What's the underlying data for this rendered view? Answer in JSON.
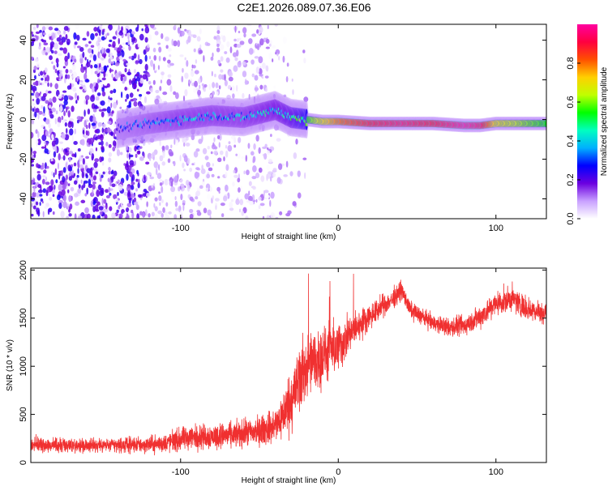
{
  "title": "C2E1.2026.089.07.36.E06",
  "chart_data": [
    {
      "type": "heatmap",
      "name": "spectrogram",
      "xlabel": "Height of straight line (km)",
      "ylabel": "Frequency (Hz)",
      "xlim": [
        -195,
        132
      ],
      "ylim": [
        -50,
        48
      ],
      "xticks": [
        -100,
        0,
        100
      ],
      "xtick_labels": [
        "-100",
        "0",
        "100"
      ],
      "yticks": [
        -40,
        -20,
        0,
        20,
        40
      ],
      "ytick_labels": [
        "-40",
        "-20",
        "0",
        "20",
        "40"
      ],
      "ridge": {
        "description_points_x": [
          -140,
          -120,
          -100,
          -80,
          -60,
          -40,
          -30,
          -20,
          -10,
          0,
          20,
          40,
          60,
          80,
          90,
          100,
          120,
          132
        ],
        "frequency_y": [
          -5,
          -2,
          0,
          2,
          1,
          5,
          1,
          0,
          -1,
          -1,
          -2,
          -2,
          -2,
          -3,
          -3,
          -2,
          -2,
          -2
        ],
        "normalized_amplitude": [
          0.25,
          0.3,
          0.35,
          0.35,
          0.35,
          0.4,
          0.45,
          0.55,
          0.7,
          0.8,
          0.9,
          0.95,
          0.9,
          1.0,
          0.95,
          0.7,
          0.6,
          0.55
        ]
      },
      "colorbar": {
        "label": "Normalized spectral amplitude",
        "range": [
          0.0,
          1.0
        ],
        "ticks": [
          0.0,
          0.2,
          0.4,
          0.6,
          0.8
        ],
        "tick_labels": [
          "0.0",
          "0.2",
          "0.4",
          "0.6",
          "0.8"
        ],
        "colors": [
          "#ffffff",
          "#c8a0ff",
          "#6b00e0",
          "#0000ff",
          "#00b0ff",
          "#00ffc0",
          "#00ff00",
          "#c0ff00",
          "#ffd000",
          "#ff5000",
          "#ff0040",
          "#ff00a0"
        ]
      }
    },
    {
      "type": "line",
      "name": "snr",
      "xlabel": "Height of straight line (km)",
      "ylabel": "SNR (10 * v/v)",
      "xlim": [
        -195,
        132
      ],
      "ylim": [
        0,
        2020
      ],
      "xticks": [
        -100,
        0,
        100
      ],
      "xtick_labels": [
        "-100",
        "0",
        "100"
      ],
      "yticks": [
        0,
        500,
        1000,
        1500,
        2000
      ],
      "ytick_labels": [
        "0",
        "500",
        "1000",
        "1500",
        "2000"
      ],
      "color": "#f03030",
      "x": [
        -195,
        -180,
        -160,
        -140,
        -120,
        -110,
        -100,
        -90,
        -80,
        -70,
        -60,
        -50,
        -40,
        -35,
        -30,
        -25,
        -20,
        -15,
        -10,
        -5,
        0,
        5,
        10,
        15,
        20,
        25,
        30,
        35,
        40,
        45,
        50,
        55,
        60,
        70,
        80,
        90,
        100,
        110,
        120,
        132
      ],
      "y": [
        190,
        180,
        175,
        180,
        185,
        200,
        240,
        270,
        270,
        280,
        300,
        330,
        380,
        500,
        650,
        850,
        1000,
        1050,
        1100,
        1150,
        1200,
        1280,
        1380,
        1450,
        1520,
        1580,
        1650,
        1700,
        1800,
        1600,
        1550,
        1500,
        1450,
        1400,
        1420,
        1520,
        1650,
        1700,
        1600,
        1550
      ],
      "y_spread": [
        70,
        70,
        70,
        70,
        80,
        90,
        110,
        120,
        120,
        120,
        130,
        140,
        160,
        220,
        300,
        330,
        320,
        300,
        280,
        260,
        240,
        200,
        160,
        140,
        120,
        110,
        100,
        100,
        90,
        80,
        80,
        80,
        80,
        90,
        100,
        110,
        120,
        120,
        110,
        100
      ]
    }
  ]
}
